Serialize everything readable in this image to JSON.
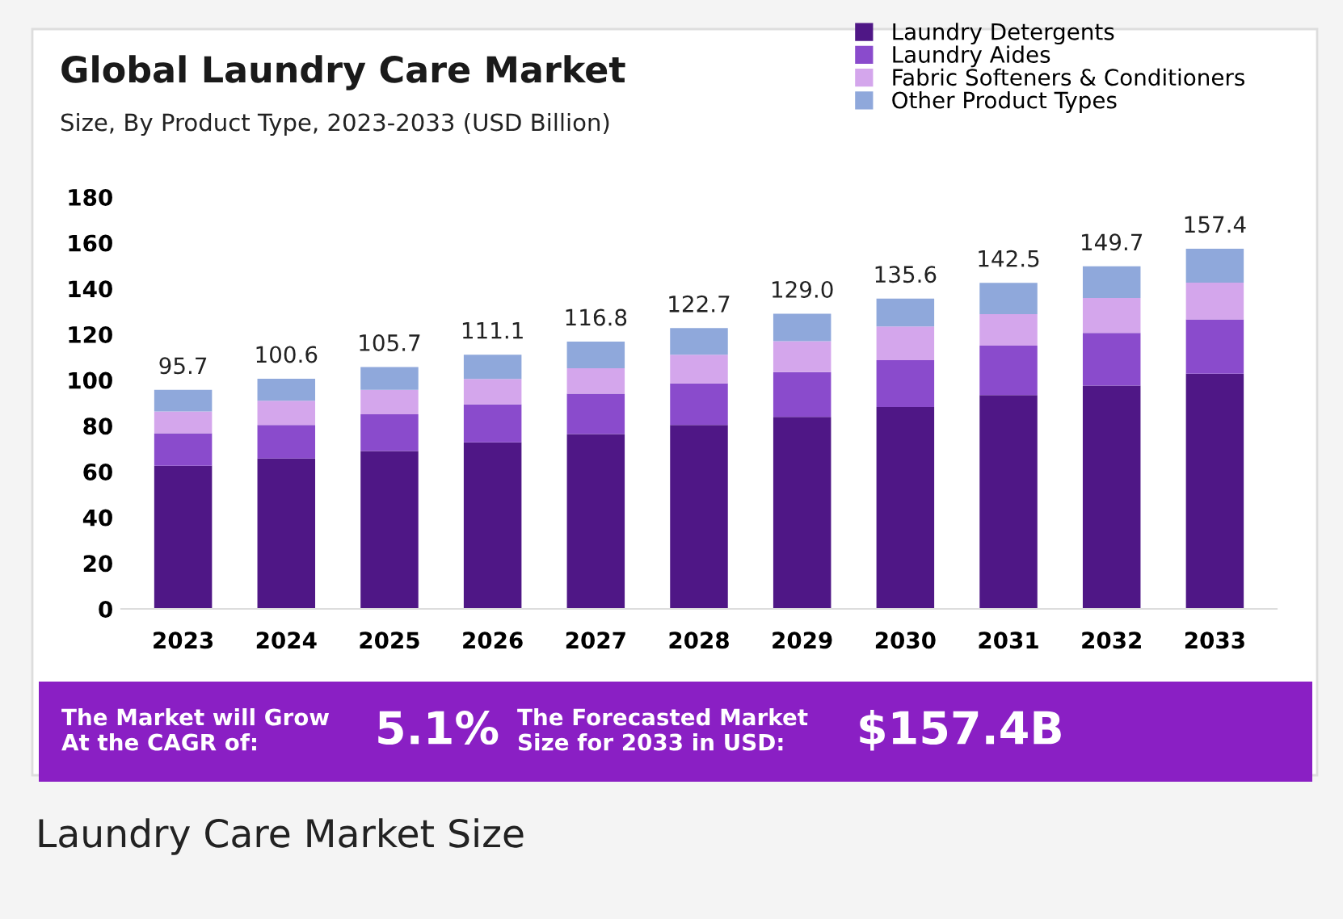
{
  "chart_data": {
    "type": "bar",
    "stacked": true,
    "title": "Global Laundry Care Market",
    "subtitle": "Size, By Product Type, 2023-2033 (USD Billion)",
    "categories": [
      "2023",
      "2024",
      "2025",
      "2026",
      "2027",
      "2028",
      "2029",
      "2030",
      "2031",
      "2032",
      "2033"
    ],
    "series": [
      {
        "name": "Laundry Detergents",
        "color": "#4f1786",
        "values": [
          62.6,
          65.7,
          69.0,
          72.8,
          76.4,
          80.4,
          83.9,
          88.2,
          93.4,
          97.6,
          102.8
        ]
      },
      {
        "name": "Laundry Aides",
        "color": "#8a4bcc",
        "values": [
          14.2,
          14.7,
          16.1,
          16.6,
          17.7,
          18.2,
          19.6,
          20.5,
          21.7,
          23.0,
          23.7
        ]
      },
      {
        "name": "Fabric Softeners & Conditioners",
        "color": "#d4a6ec",
        "values": [
          9.5,
          10.6,
          10.6,
          11.1,
          11.1,
          12.5,
          13.5,
          14.7,
          13.7,
          15.3,
          16.1
        ]
      },
      {
        "name": "Other Product Types",
        "color": "#8fa8db",
        "values": [
          9.4,
          9.6,
          10.0,
          10.6,
          11.6,
          11.6,
          12.0,
          12.2,
          13.7,
          13.8,
          14.8
        ]
      }
    ],
    "totals": [
      "95.7",
      "100.6",
      "105.7",
      "111.1",
      "116.8",
      "122.7",
      "129.0",
      "135.6",
      "142.5",
      "149.7",
      "157.4"
    ],
    "ylim": [
      0,
      180
    ],
    "yticks": [
      0,
      20,
      40,
      60,
      80,
      100,
      120,
      140,
      160,
      180
    ],
    "grid": false,
    "legend": "top right",
    "annotations": [
      "The Market will Grow\nAt the CAGR of:",
      "5.1%",
      "The Forecasted Market\nSize for 2033 in USD:",
      "$157.4B",
      "Laundry Care Market Size"
    ]
  }
}
